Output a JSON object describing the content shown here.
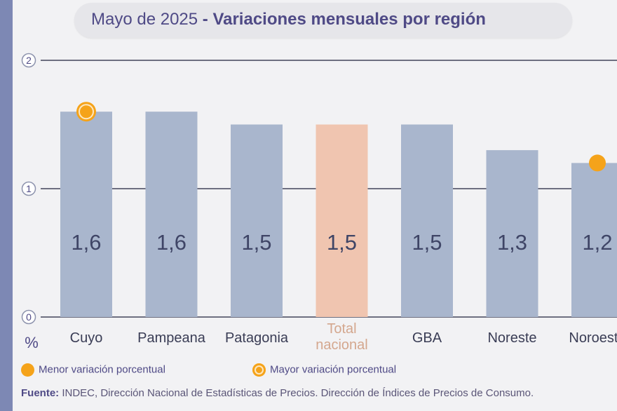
{
  "title": {
    "period": "Mayo de 2025",
    "separator": " - ",
    "subtitle": "Variaciones mensuales por región"
  },
  "colors": {
    "bar": "#a9b6cd",
    "highlight_bar": "#f0c5b0",
    "gridline": "#6e6f80",
    "marker": "#f5a31a",
    "label": "#3f4566"
  },
  "chart_data": {
    "type": "bar",
    "categories": [
      "Cuyo",
      "Pampeana",
      "Patagonia",
      "Total nacional",
      "GBA",
      "Noreste",
      "Noroeste"
    ],
    "category_lines": [
      [
        "Cuyo"
      ],
      [
        "Pampeana"
      ],
      [
        "Patagonia"
      ],
      [
        "Total",
        "nacional"
      ],
      [
        "GBA"
      ],
      [
        "Noreste"
      ],
      [
        "Noroeste"
      ]
    ],
    "values": [
      1.6,
      1.6,
      1.5,
      1.5,
      1.5,
      1.3,
      1.2
    ],
    "value_labels": [
      "1,6",
      "1,6",
      "1,5",
      "1,5",
      "1,5",
      "1,3",
      "1,2"
    ],
    "highlight_category": "Total nacional",
    "ylabel": "%",
    "ylim": [
      0,
      2
    ],
    "yticks": [
      0,
      1,
      2
    ],
    "grid": true,
    "markers": [
      {
        "category": "Cuyo",
        "kind": "mayor"
      },
      {
        "category": "Noroeste",
        "kind": "menor"
      }
    ]
  },
  "legend": {
    "menor": "Menor variación porcentual",
    "mayor": "Mayor variación porcentual"
  },
  "source": {
    "label": "Fuente:",
    "text": " INDEC, Dirección Nacional de Estadísticas de Precios. Dirección de Índices de Precios de Consumo."
  }
}
